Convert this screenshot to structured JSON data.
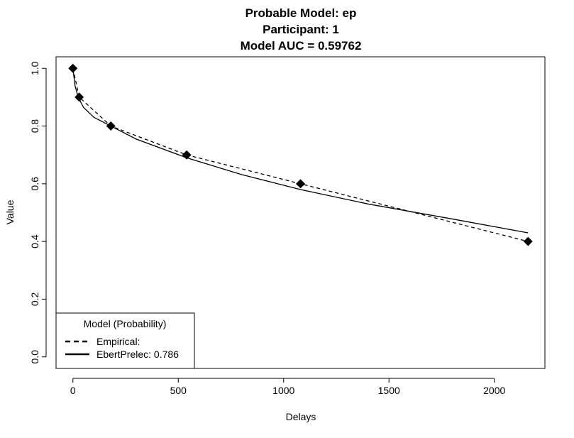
{
  "chart_data": {
    "type": "line",
    "title_lines": [
      "Probable Model: ep",
      "Participant: 1",
      "Model AUC = 0.59762"
    ],
    "xlabel": "Delays",
    "ylabel": "Value",
    "xlim": [
      -80,
      2240
    ],
    "ylim": [
      -0.04,
      1.04
    ],
    "x_ticks": [
      0,
      500,
      1000,
      1500,
      2000
    ],
    "y_ticks": [
      0.0,
      0.2,
      0.4,
      0.6,
      0.8,
      1.0
    ],
    "y_tick_labels": [
      "0.0",
      "0.2",
      "0.4",
      "0.6",
      "0.8",
      "1.0"
    ],
    "grid": false,
    "points": {
      "x": [
        0,
        30,
        180,
        540,
        1080,
        2160
      ],
      "y": [
        1.0,
        0.9,
        0.8,
        0.7,
        0.6,
        0.4
      ]
    },
    "series": [
      {
        "name": "Empirical:",
        "line_style": "dashed",
        "x": [
          0,
          30,
          180,
          540,
          1080,
          2160
        ],
        "y": [
          1.0,
          0.9,
          0.8,
          0.7,
          0.6,
          0.4
        ]
      },
      {
        "name": "EbertPrelec: 0.786",
        "line_style": "solid",
        "x": [
          0,
          10,
          25,
          50,
          100,
          180,
          300,
          540,
          800,
          1080,
          1400,
          1800,
          2160
        ],
        "y": [
          1.0,
          0.94,
          0.9,
          0.865,
          0.83,
          0.8,
          0.755,
          0.69,
          0.632,
          0.58,
          0.53,
          0.478,
          0.43
        ]
      }
    ],
    "legend": {
      "title": "Model (Probability)",
      "entries": [
        "Empirical:",
        "EbertPrelec: 0.786"
      ],
      "placement": "bottom-left"
    },
    "colors": {
      "line": "#000000",
      "marker": "#000000"
    }
  }
}
